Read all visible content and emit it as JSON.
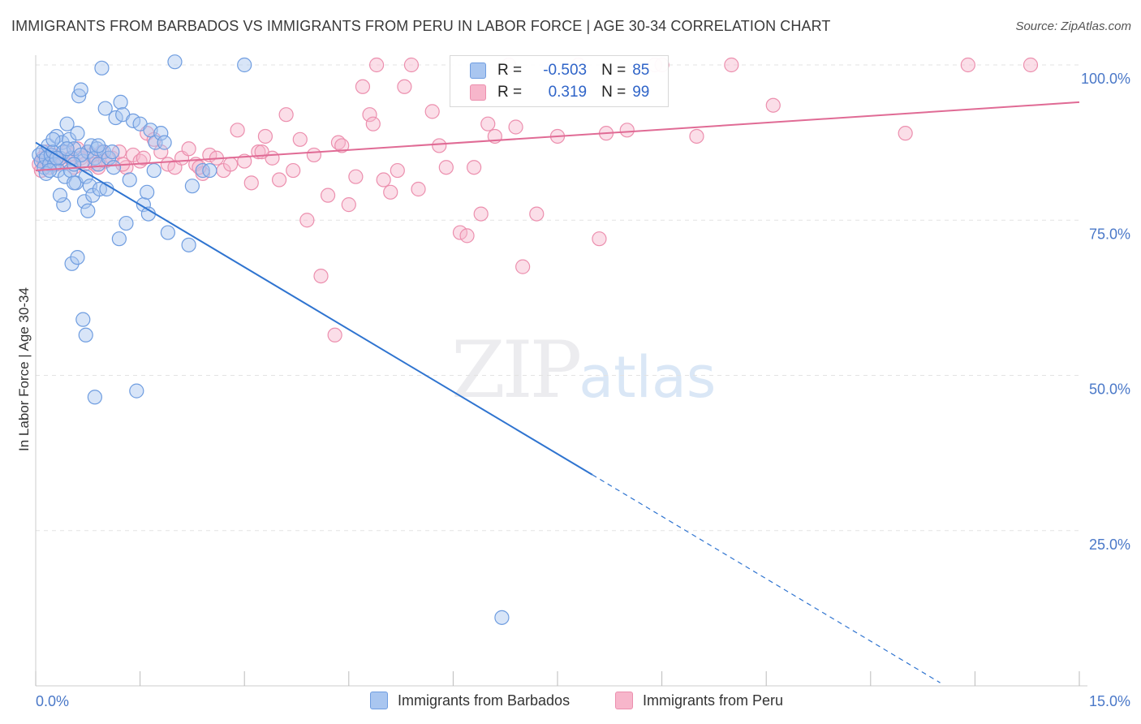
{
  "title": "IMMIGRANTS FROM BARBADOS VS IMMIGRANTS FROM PERU IN LABOR FORCE | AGE 30-34 CORRELATION CHART",
  "source": "Source: ZipAtlas.com",
  "watermark": {
    "zip": "ZIP",
    "atlas": "atlas"
  },
  "legend": {
    "rows": [
      {
        "r_label": "R =",
        "r_value": "-0.503",
        "n_label": "N =",
        "n_value": "85",
        "color": "#a9c6f0"
      },
      {
        "r_label": "R =",
        "r_value": "0.319",
        "n_label": "N =",
        "n_value": "99",
        "color": "#f7b6cb"
      }
    ]
  },
  "bottom_legend": [
    "Immigrants from Barbados",
    "Immigrants from Peru"
  ],
  "colors": {
    "barbados_fill": "#a9c6f0",
    "barbados_stroke": "#6f9de0",
    "barbados_line": "#2f74d0",
    "peru_fill": "#f7b6cb",
    "peru_stroke": "#ec8fae",
    "peru_line": "#e06b95",
    "grid": "#e3e3e3",
    "tick_text": "#4a78c8"
  },
  "chart_data": {
    "type": "scatter",
    "title": "IMMIGRANTS FROM BARBADOS VS IMMIGRANTS FROM PERU IN LABOR FORCE | AGE 30-34 CORRELATION CHART",
    "xlabel": "",
    "ylabel": "In Labor Force | Age 30-34",
    "xlim": [
      0,
      15
    ],
    "ylim": [
      0,
      100
    ],
    "x_tick_labels": [
      "0.0%",
      "15.0%"
    ],
    "y_ticks": [
      25,
      50,
      75,
      100
    ],
    "y_tick_labels": [
      "25.0%",
      "50.0%",
      "75.0%",
      "100.0%"
    ],
    "grid": true,
    "legend_position": "top-center",
    "series": [
      {
        "name": "Immigrants from Barbados",
        "trend": {
          "x": [
            0,
            8.0
          ],
          "y": [
            87.5,
            34.0
          ],
          "dashed_to": [
            13.0,
            0.5
          ]
        },
        "points": [
          [
            0.05,
            85.5
          ],
          [
            0.08,
            84.5
          ],
          [
            0.1,
            86
          ],
          [
            0.12,
            83.5
          ],
          [
            0.15,
            85
          ],
          [
            0.18,
            87
          ],
          [
            0.2,
            84
          ],
          [
            0.22,
            85.5
          ],
          [
            0.25,
            86
          ],
          [
            0.27,
            84
          ],
          [
            0.3,
            88.5
          ],
          [
            0.32,
            83
          ],
          [
            0.35,
            85
          ],
          [
            0.38,
            87.5
          ],
          [
            0.4,
            86
          ],
          [
            0.42,
            82
          ],
          [
            0.45,
            90.5
          ],
          [
            0.48,
            88
          ],
          [
            0.5,
            83
          ],
          [
            0.52,
            85
          ],
          [
            0.55,
            86.5
          ],
          [
            0.58,
            81
          ],
          [
            0.6,
            89
          ],
          [
            0.62,
            95
          ],
          [
            0.65,
            96
          ],
          [
            0.68,
            84.5
          ],
          [
            0.7,
            78
          ],
          [
            0.72,
            82
          ],
          [
            0.75,
            86
          ],
          [
            0.78,
            80.5
          ],
          [
            0.8,
            87
          ],
          [
            0.82,
            79
          ],
          [
            0.85,
            85
          ],
          [
            0.88,
            86.5
          ],
          [
            0.9,
            84
          ],
          [
            0.92,
            80
          ],
          [
            0.95,
            99.5
          ],
          [
            0.98,
            86
          ],
          [
            1.0,
            93
          ],
          [
            1.02,
            80
          ],
          [
            1.05,
            85
          ],
          [
            1.1,
            86
          ],
          [
            1.12,
            83.5
          ],
          [
            1.15,
            91.5
          ],
          [
            1.2,
            72
          ],
          [
            1.22,
            94
          ],
          [
            1.25,
            92
          ],
          [
            1.3,
            74.5
          ],
          [
            1.35,
            81.5
          ],
          [
            1.4,
            91
          ],
          [
            1.45,
            47.5
          ],
          [
            1.5,
            90.5
          ],
          [
            1.55,
            77.5
          ],
          [
            1.6,
            79.5
          ],
          [
            1.62,
            76
          ],
          [
            1.65,
            89.5
          ],
          [
            1.7,
            83
          ],
          [
            1.72,
            87.5
          ],
          [
            1.8,
            89
          ],
          [
            1.9,
            73
          ],
          [
            2.2,
            71
          ],
          [
            2.25,
            80.5
          ],
          [
            2.4,
            83
          ],
          [
            2.5,
            83
          ],
          [
            3.0,
            100
          ],
          [
            0.4,
            77.5
          ],
          [
            0.52,
            68
          ],
          [
            0.6,
            69
          ],
          [
            0.68,
            59
          ],
          [
            0.72,
            56.5
          ],
          [
            0.85,
            46.5
          ],
          [
            0.75,
            76.5
          ],
          [
            0.55,
            81
          ],
          [
            0.35,
            79
          ],
          [
            0.25,
            88
          ],
          [
            0.15,
            82.5
          ],
          [
            0.45,
            86.5
          ],
          [
            0.65,
            85.5
          ],
          [
            0.3,
            85
          ],
          [
            0.2,
            83
          ],
          [
            1.85,
            87.5
          ],
          [
            0.55,
            84
          ],
          [
            0.9,
            87
          ],
          [
            2.0,
            100.5
          ],
          [
            6.7,
            11
          ]
        ]
      },
      {
        "name": "Immigrants from Peru",
        "trend": {
          "x": [
            0,
            15
          ],
          "y": [
            83.0,
            94.0
          ]
        },
        "points": [
          [
            0.05,
            84
          ],
          [
            0.08,
            83
          ],
          [
            0.1,
            85
          ],
          [
            0.12,
            84.5
          ],
          [
            0.15,
            86
          ],
          [
            0.2,
            83.5
          ],
          [
            0.25,
            85.5
          ],
          [
            0.3,
            84
          ],
          [
            0.35,
            85
          ],
          [
            0.4,
            84.5
          ],
          [
            0.45,
            86
          ],
          [
            0.5,
            85
          ],
          [
            0.55,
            83.5
          ],
          [
            0.6,
            86.5
          ],
          [
            0.65,
            85
          ],
          [
            0.7,
            84
          ],
          [
            0.8,
            85.5
          ],
          [
            0.85,
            84
          ],
          [
            0.9,
            83.5
          ],
          [
            0.95,
            86
          ],
          [
            1.0,
            84.5
          ],
          [
            1.1,
            85
          ],
          [
            1.2,
            86
          ],
          [
            1.3,
            83.5
          ],
          [
            1.4,
            85.5
          ],
          [
            1.5,
            84.5
          ],
          [
            1.6,
            89
          ],
          [
            1.7,
            88
          ],
          [
            1.8,
            86
          ],
          [
            1.9,
            84
          ],
          [
            2.0,
            83.5
          ],
          [
            2.1,
            85
          ],
          [
            2.2,
            86.5
          ],
          [
            2.3,
            84
          ],
          [
            2.4,
            82.5
          ],
          [
            2.5,
            85.5
          ],
          [
            2.6,
            85
          ],
          [
            2.7,
            83
          ],
          [
            2.8,
            84
          ],
          [
            2.9,
            89.5
          ],
          [
            3.0,
            84.5
          ],
          [
            3.1,
            81
          ],
          [
            3.2,
            86
          ],
          [
            3.3,
            88.5
          ],
          [
            3.4,
            85
          ],
          [
            3.5,
            81.5
          ],
          [
            3.6,
            92
          ],
          [
            3.7,
            83
          ],
          [
            3.8,
            88
          ],
          [
            3.9,
            75
          ],
          [
            4.0,
            85.5
          ],
          [
            4.1,
            66
          ],
          [
            4.2,
            79
          ],
          [
            4.3,
            56.5
          ],
          [
            4.35,
            87.5
          ],
          [
            4.4,
            87
          ],
          [
            4.5,
            77.5
          ],
          [
            4.6,
            82
          ],
          [
            4.7,
            96.5
          ],
          [
            4.8,
            92
          ],
          [
            4.85,
            90.5
          ],
          [
            4.9,
            100
          ],
          [
            5.0,
            81.5
          ],
          [
            5.1,
            79.5
          ],
          [
            5.2,
            83
          ],
          [
            5.3,
            96.5
          ],
          [
            5.4,
            100
          ],
          [
            5.5,
            80
          ],
          [
            5.7,
            92.5
          ],
          [
            5.8,
            87
          ],
          [
            5.9,
            83.5
          ],
          [
            6.1,
            73
          ],
          [
            6.2,
            72.5
          ],
          [
            6.3,
            83.5
          ],
          [
            6.4,
            76
          ],
          [
            6.5,
            90.5
          ],
          [
            6.6,
            88.5
          ],
          [
            6.8,
            100
          ],
          [
            6.9,
            90
          ],
          [
            7.0,
            67.5
          ],
          [
            7.2,
            76
          ],
          [
            7.5,
            88.5
          ],
          [
            7.8,
            100
          ],
          [
            8.1,
            72
          ],
          [
            8.2,
            89
          ],
          [
            8.9,
            100
          ],
          [
            8.5,
            89.5
          ],
          [
            9.5,
            88.5
          ],
          [
            10.0,
            100
          ],
          [
            10.6,
            93.5
          ],
          [
            12.5,
            89
          ],
          [
            13.4,
            100
          ],
          [
            14.3,
            100
          ],
          [
            9.0,
            100
          ],
          [
            2.35,
            83.5
          ],
          [
            1.55,
            85
          ],
          [
            0.75,
            86
          ],
          [
            1.25,
            84
          ],
          [
            3.25,
            86
          ]
        ]
      }
    ]
  }
}
